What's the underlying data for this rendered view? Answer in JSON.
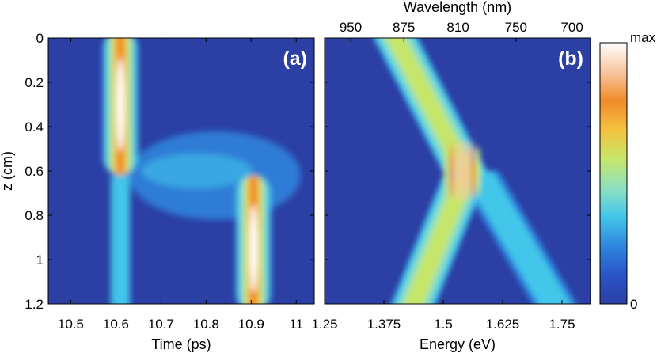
{
  "chart_data": [
    {
      "type": "heatmap",
      "panel_label": "(a)",
      "xlabel": "Time (ps)",
      "ylabel": "z (cm)",
      "xlim": [
        10.45,
        11.04
      ],
      "ylim": [
        0,
        1.2
      ],
      "y_reversed": true,
      "x_ticks": [
        "10.5",
        "10.6",
        "10.7",
        "10.8",
        "10.9",
        "11"
      ],
      "x_tick_values": [
        10.5,
        10.6,
        10.7,
        10.8,
        10.9,
        11.0
      ],
      "y_ticks": [
        "0",
        "0.2",
        "0.4",
        "0.6",
        "0.8",
        "1",
        "1.2"
      ],
      "y_tick_values": [
        0,
        0.2,
        0.4,
        0.6,
        0.8,
        1.0,
        1.2
      ],
      "features": [
        {
          "kind": "pulse",
          "center_time": 10.61,
          "z_range": [
            0,
            0.62
          ],
          "peak_z": 0.3,
          "peak_level": 0.95
        },
        {
          "kind": "weak_trail",
          "center_time": 10.61,
          "z_range": [
            0.62,
            1.2
          ],
          "peak_level": 0.35
        },
        {
          "kind": "pulse",
          "center_time": 10.905,
          "z_range": [
            0.62,
            1.2
          ],
          "peak_z": 0.95,
          "peak_level": 0.95
        },
        {
          "kind": "diffuse_bridge",
          "time_range": [
            10.62,
            11.0
          ],
          "z_range": [
            0.45,
            0.85
          ],
          "peak_level": 0.35
        }
      ]
    },
    {
      "type": "heatmap",
      "panel_label": "(b)",
      "xlabel": "Energy (eV)",
      "ylabel": "",
      "top_xlabel": "Wavelength (nm)",
      "xlim": [
        1.25,
        1.81
      ],
      "ylim": [
        0,
        1.2
      ],
      "y_reversed": true,
      "x_ticks": [
        "1.25",
        "1.375",
        "1.5",
        "1.625",
        "1.75"
      ],
      "x_tick_values": [
        1.25,
        1.375,
        1.5,
        1.625,
        1.75
      ],
      "top_x_ticks": [
        "950",
        "875",
        "810",
        "750",
        "700"
      ],
      "top_x_tick_energy": [
        1.305,
        1.417,
        1.531,
        1.653,
        1.771
      ],
      "features": [
        {
          "kind": "band",
          "energy_at_z0": 1.4,
          "energy_at_z0_6": 1.55,
          "z_range": [
            0,
            0.62
          ],
          "peak_level": 0.6
        },
        {
          "kind": "fringes",
          "energy_range": [
            1.5,
            1.58
          ],
          "z_center": 0.6,
          "peak_level": 0.9
        },
        {
          "kind": "band",
          "energy_at_z0_6": 1.55,
          "energy_at_z1_2": 1.43,
          "z_range": [
            0.6,
            1.2
          ],
          "peak_level": 0.6
        },
        {
          "kind": "weak_band",
          "energy_at_z0_6": 1.57,
          "energy_at_z1_2": 1.74,
          "z_range": [
            0.6,
            1.2
          ],
          "peak_level": 0.18
        }
      ]
    }
  ],
  "colorbar": {
    "top_label": "max",
    "bottom_label": "0",
    "stops": [
      "#2b3fa5",
      "#2a55c8",
      "#2e86de",
      "#43c6ea",
      "#8fe0c0",
      "#c6e66a",
      "#f4c23e",
      "#f08a2a",
      "#f7c6a0",
      "#ffffff"
    ]
  },
  "colors": {
    "background_low": "#2b3fa5"
  }
}
